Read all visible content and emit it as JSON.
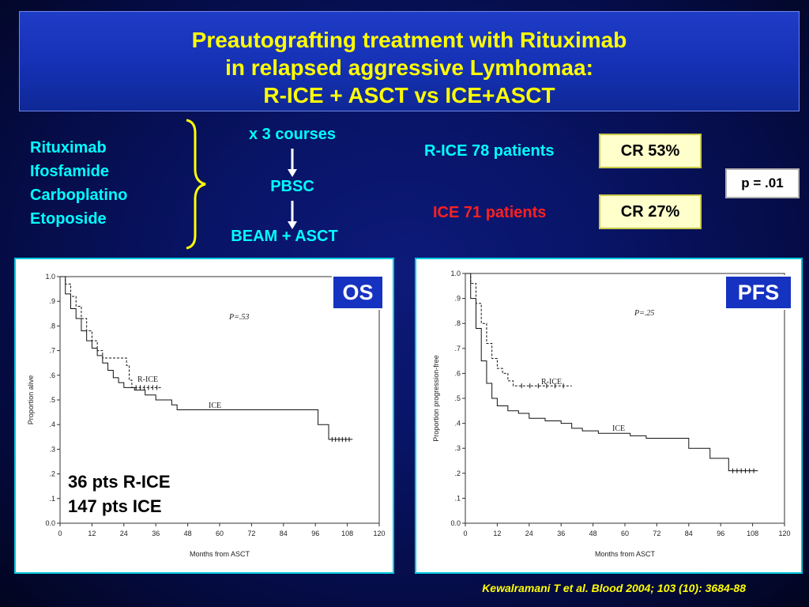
{
  "title": {
    "line1": "Preautografting treatment with Rituximab",
    "line2": "in relapsed aggressive Lymhomaa:",
    "line3": "R-ICE + ASCT vs ICE+ASCT"
  },
  "regimen": {
    "drugs": [
      "Rituximab",
      "Ifosfamide",
      "Carboplatino",
      "Etoposide"
    ],
    "courses": "x 3 courses",
    "collection": "PBSC",
    "conditioning": "BEAM + ASCT"
  },
  "results": {
    "rice_label": "R-ICE 78 patients",
    "rice_cr": "CR 53%",
    "ice_label": "ICE 71 patients",
    "ice_cr": "CR 27%",
    "pvalue": "p = .01"
  },
  "colors": {
    "cyan_text": "#00ffff",
    "red_text": "#ff2020",
    "title_yellow": "#ffff00",
    "panel_border": "#00c8e0"
  },
  "chart_data": [
    {
      "type": "line",
      "tag": "OS",
      "ylabel": "Proportion alive",
      "xlabel": "Months from ASCT",
      "pvalue": "P=.53",
      "xlim": [
        0,
        120
      ],
      "ylim": [
        0,
        1
      ],
      "x_ticks": [
        "0",
        "12",
        "24",
        "36",
        "48",
        "60",
        "72",
        "84",
        "96",
        "108",
        "120"
      ],
      "y_ticks": [
        "0.0",
        ".1",
        ".2",
        ".3",
        ".4",
        ".5",
        ".6",
        ".7",
        ".8",
        ".9",
        "1.0"
      ],
      "annotation": [
        "36 pts R-ICE",
        "147 pts ICE"
      ],
      "series": [
        {
          "name": "R-ICE",
          "dashed": true,
          "points": [
            [
              0,
              1.0
            ],
            [
              2,
              0.97
            ],
            [
              4,
              0.92
            ],
            [
              6,
              0.88
            ],
            [
              8,
              0.83
            ],
            [
              10,
              0.78
            ],
            [
              12,
              0.74
            ],
            [
              14,
              0.7
            ],
            [
              16,
              0.67
            ],
            [
              24,
              0.67
            ],
            [
              25,
              0.64
            ],
            [
              26,
              0.58
            ],
            [
              27,
              0.55
            ],
            [
              38,
              0.55
            ]
          ]
        },
        {
          "name": "ICE",
          "dashed": false,
          "points": [
            [
              0,
              1.0
            ],
            [
              2,
              0.93
            ],
            [
              4,
              0.87
            ],
            [
              6,
              0.83
            ],
            [
              8,
              0.78
            ],
            [
              10,
              0.74
            ],
            [
              12,
              0.71
            ],
            [
              14,
              0.68
            ],
            [
              16,
              0.65
            ],
            [
              18,
              0.62
            ],
            [
              20,
              0.59
            ],
            [
              22,
              0.57
            ],
            [
              24,
              0.55
            ],
            [
              28,
              0.54
            ],
            [
              32,
              0.52
            ],
            [
              36,
              0.5
            ],
            [
              42,
              0.48
            ],
            [
              44,
              0.46
            ],
            [
              52,
              0.46
            ],
            [
              64,
              0.46
            ],
            [
              80,
              0.46
            ],
            [
              96,
              0.46
            ],
            [
              97,
              0.4
            ],
            [
              100,
              0.4
            ],
            [
              101,
              0.34
            ],
            [
              110,
              0.34
            ]
          ]
        }
      ]
    },
    {
      "type": "line",
      "tag": "PFS",
      "ylabel": "Proportion progression-free",
      "xlabel": "Months from ASCT",
      "pvalue": "P=.25",
      "xlim": [
        0,
        120
      ],
      "ylim": [
        0,
        1
      ],
      "x_ticks": [
        "0",
        "12",
        "24",
        "36",
        "48",
        "60",
        "72",
        "84",
        "96",
        "108",
        "120"
      ],
      "y_ticks": [
        "0.0",
        ".1",
        ".2",
        ".3",
        ".4",
        ".5",
        ".6",
        ".7",
        ".8",
        ".9",
        "1.0"
      ],
      "series": [
        {
          "name": "R-ICE",
          "dashed": true,
          "points": [
            [
              0,
              1.0
            ],
            [
              2,
              0.96
            ],
            [
              4,
              0.88
            ],
            [
              6,
              0.8
            ],
            [
              8,
              0.72
            ],
            [
              10,
              0.66
            ],
            [
              12,
              0.62
            ],
            [
              14,
              0.6
            ],
            [
              16,
              0.57
            ],
            [
              18,
              0.55
            ],
            [
              40,
              0.55
            ]
          ]
        },
        {
          "name": "ICE",
          "dashed": false,
          "points": [
            [
              0,
              1.0
            ],
            [
              2,
              0.9
            ],
            [
              4,
              0.78
            ],
            [
              6,
              0.65
            ],
            [
              8,
              0.56
            ],
            [
              10,
              0.5
            ],
            [
              12,
              0.47
            ],
            [
              16,
              0.45
            ],
            [
              20,
              0.44
            ],
            [
              24,
              0.42
            ],
            [
              30,
              0.41
            ],
            [
              36,
              0.4
            ],
            [
              40,
              0.38
            ],
            [
              44,
              0.37
            ],
            [
              50,
              0.36
            ],
            [
              56,
              0.36
            ],
            [
              62,
              0.35
            ],
            [
              68,
              0.34
            ],
            [
              74,
              0.34
            ],
            [
              84,
              0.3
            ],
            [
              90,
              0.3
            ],
            [
              92,
              0.26
            ],
            [
              98,
              0.26
            ],
            [
              99,
              0.21
            ],
            [
              110,
              0.21
            ]
          ]
        }
      ]
    }
  ],
  "citation": "Kewalramani T et al. Blood 2004; 103 (10): 3684-88"
}
